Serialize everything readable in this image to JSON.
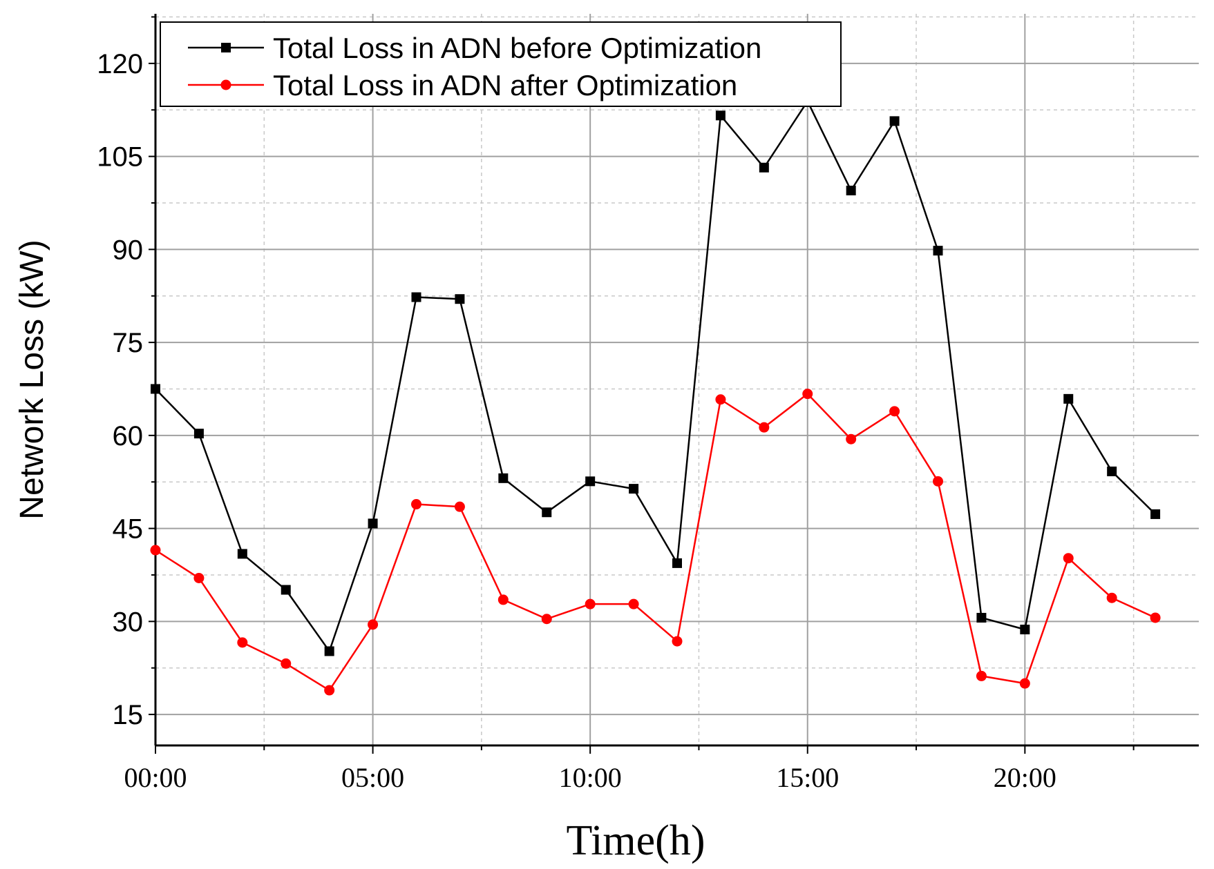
{
  "chart_data": {
    "type": "line",
    "title": "",
    "xlabel": "Time(h)",
    "ylabel": "Network Loss (kW)",
    "x": [
      0,
      1,
      2,
      3,
      4,
      5,
      6,
      7,
      8,
      9,
      10,
      11,
      12,
      13,
      14,
      15,
      16,
      17,
      18,
      19,
      20,
      21,
      22,
      23
    ],
    "xlim": [
      0,
      24
    ],
    "ylim": [
      10,
      128
    ],
    "x_ticks": [
      {
        "value": 0,
        "label": "00:00"
      },
      {
        "value": 5,
        "label": "05:00"
      },
      {
        "value": 10,
        "label": "10:00"
      },
      {
        "value": 15,
        "label": "15:00"
      },
      {
        "value": 20,
        "label": "20:00"
      }
    ],
    "y_ticks": [
      15,
      30,
      45,
      60,
      75,
      90,
      105,
      120
    ],
    "grid": true,
    "legend_position": "top-left",
    "series": [
      {
        "name": "Total Loss in ADN before Optimization",
        "color": "#000000",
        "marker": "square",
        "values": [
          67.5,
          60.3,
          40.9,
          35.1,
          25.2,
          45.8,
          82.3,
          82.0,
          53.1,
          47.6,
          52.6,
          51.4,
          39.4,
          111.6,
          103.2,
          113.9,
          99.5,
          110.7,
          89.8,
          30.6,
          28.7,
          65.9,
          54.2,
          47.3
        ]
      },
      {
        "name": "Total Loss in ADN after Optimization",
        "color": "#ff0000",
        "marker": "circle",
        "values": [
          41.5,
          37.0,
          26.6,
          23.2,
          18.9,
          29.5,
          48.9,
          48.5,
          33.5,
          30.4,
          32.8,
          32.8,
          26.8,
          65.8,
          61.3,
          66.7,
          59.4,
          63.9,
          52.6,
          21.2,
          20.0,
          40.2,
          33.8,
          30.6
        ]
      }
    ]
  }
}
